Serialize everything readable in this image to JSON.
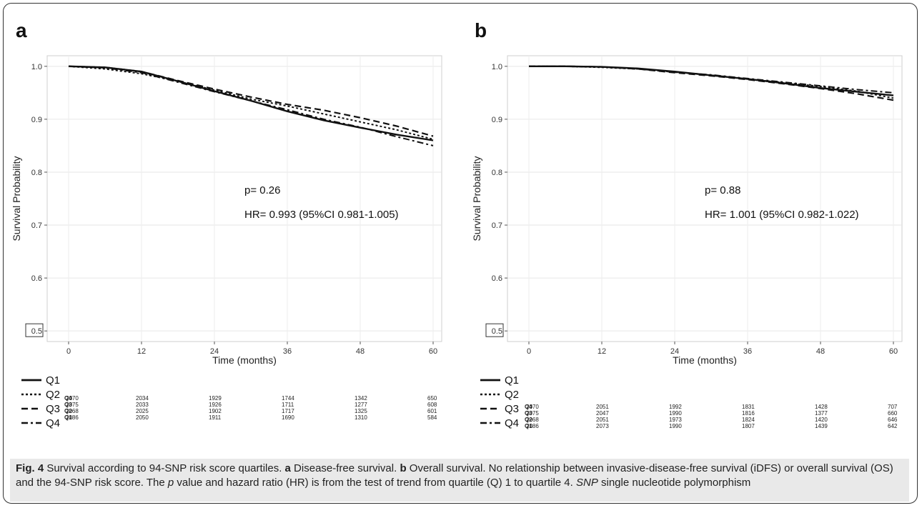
{
  "chart_data": [
    {
      "panel": "a",
      "type": "line",
      "xlabel": "Time (months)",
      "ylabel": "Survival Probability",
      "xlim": [
        0,
        60
      ],
      "ylim": [
        0.48,
        1.02
      ],
      "x_ticks": [
        0,
        12,
        24,
        36,
        48,
        60
      ],
      "y_ticks": [
        0.5,
        0.6,
        0.7,
        0.8,
        0.9,
        1.0
      ],
      "y_tick_labels": [
        "0.5",
        "0.6",
        "0.7",
        "0.8",
        "0.9",
        "1.0"
      ],
      "p_text": "p= 0.26",
      "hr_text": "HR= 0.993 (95%CI 0.981-1.005)",
      "series": [
        {
          "name": "Q1",
          "style": "solid",
          "x": [
            0,
            6,
            12,
            18,
            24,
            30,
            36,
            42,
            48,
            54,
            60
          ],
          "y": [
            1.0,
            0.998,
            0.99,
            0.972,
            0.953,
            0.935,
            0.915,
            0.898,
            0.884,
            0.871,
            0.86
          ]
        },
        {
          "name": "Q2",
          "style": "dotted",
          "x": [
            0,
            6,
            12,
            18,
            24,
            30,
            36,
            42,
            48,
            54,
            60
          ],
          "y": [
            1.0,
            0.995,
            0.986,
            0.972,
            0.955,
            0.938,
            0.925,
            0.91,
            0.895,
            0.88,
            0.862
          ]
        },
        {
          "name": "Q3",
          "style": "dashed",
          "x": [
            0,
            6,
            12,
            18,
            24,
            30,
            36,
            42,
            48,
            54,
            60
          ],
          "y": [
            1.0,
            0.998,
            0.99,
            0.973,
            0.957,
            0.942,
            0.928,
            0.917,
            0.903,
            0.887,
            0.868
          ]
        },
        {
          "name": "Q4",
          "style": "dashdot",
          "x": [
            0,
            6,
            12,
            18,
            24,
            30,
            36,
            42,
            48,
            54,
            60
          ],
          "y": [
            1.0,
            0.997,
            0.988,
            0.97,
            0.952,
            0.935,
            0.918,
            0.9,
            0.885,
            0.867,
            0.85
          ]
        }
      ],
      "risk_table": {
        "x": [
          0,
          12,
          24,
          36,
          48,
          60
        ],
        "rows": [
          {
            "label": "Q4",
            "values": [
              "2070",
              "2034",
              "1929",
              "1744",
              "1342",
              "650"
            ]
          },
          {
            "label": "Q3",
            "values": [
              "2075",
              "2033",
              "1926",
              "1711",
              "1277",
              "608"
            ]
          },
          {
            "label": "Q2",
            "values": [
              "2068",
              "2025",
              "1902",
              "1717",
              "1325",
              "601"
            ]
          },
          {
            "label": "Q1",
            "values": [
              "2086",
              "2050",
              "1911",
              "1690",
              "1310",
              "584"
            ]
          }
        ]
      }
    },
    {
      "panel": "b",
      "type": "line",
      "xlabel": "Time (months)",
      "ylabel": "Survival Probability",
      "xlim": [
        0,
        60
      ],
      "ylim": [
        0.48,
        1.02
      ],
      "x_ticks": [
        0,
        12,
        24,
        36,
        48,
        60
      ],
      "y_ticks": [
        0.5,
        0.6,
        0.7,
        0.8,
        0.9,
        1.0
      ],
      "y_tick_labels": [
        "0.5",
        "0.6",
        "0.7",
        "0.8",
        "0.9",
        "1.0"
      ],
      "p_text": "p= 0.88",
      "hr_text": "HR= 1.001 (95%CI 0.982-1.022)",
      "series": [
        {
          "name": "Q1",
          "style": "solid",
          "x": [
            0,
            6,
            12,
            18,
            24,
            30,
            36,
            42,
            48,
            54,
            60
          ],
          "y": [
            1.0,
            1.0,
            0.999,
            0.996,
            0.99,
            0.983,
            0.976,
            0.968,
            0.959,
            0.952,
            0.945
          ]
        },
        {
          "name": "Q2",
          "style": "dotted",
          "x": [
            0,
            6,
            12,
            18,
            24,
            30,
            36,
            42,
            48,
            54,
            60
          ],
          "y": [
            1.0,
            1.0,
            0.998,
            0.995,
            0.989,
            0.983,
            0.976,
            0.969,
            0.962,
            0.953,
            0.94
          ]
        },
        {
          "name": "Q3",
          "style": "dashed",
          "x": [
            0,
            6,
            12,
            18,
            24,
            30,
            36,
            42,
            48,
            54,
            60
          ],
          "y": [
            1.0,
            1.0,
            0.999,
            0.995,
            0.988,
            0.982,
            0.975,
            0.967,
            0.958,
            0.948,
            0.936
          ]
        },
        {
          "name": "Q4",
          "style": "dashdot",
          "x": [
            0,
            6,
            12,
            18,
            24,
            30,
            36,
            42,
            48,
            54,
            60
          ],
          "y": [
            1.0,
            1.0,
            0.999,
            0.995,
            0.989,
            0.984,
            0.977,
            0.97,
            0.963,
            0.956,
            0.95
          ]
        }
      ],
      "risk_table": {
        "x": [
          0,
          12,
          24,
          36,
          48,
          60
        ],
        "rows": [
          {
            "label": "Q4",
            "values": [
              "2070",
              "2051",
              "1992",
              "1831",
              "1428",
              "707"
            ]
          },
          {
            "label": "Q3",
            "values": [
              "2075",
              "2047",
              "1990",
              "1816",
              "1377",
              "660"
            ]
          },
          {
            "label": "Q2",
            "values": [
              "2068",
              "2051",
              "1973",
              "1824",
              "1420",
              "646"
            ]
          },
          {
            "label": "Q1",
            "values": [
              "2086",
              "2073",
              "1990",
              "1807",
              "1439",
              "642"
            ]
          }
        ]
      }
    }
  ],
  "legend": [
    "Q1",
    "Q2",
    "Q3",
    "Q4"
  ],
  "caption": {
    "fig_label": "Fig. 4",
    "text1": " Survival according to 94-SNP risk score quartiles. ",
    "a_label": "a",
    "text2": " Disease-free survival. ",
    "b_label": "b",
    "text3": " Overall survival. No relationship between invasive-disease-free survival (iDFS) or overall survival (OS) and the 94-SNP risk score. The ",
    "p_italic": "p",
    "text4": " value and hazard ratio (HR) is from the test of trend from quartile (Q) 1 to quartile 4. ",
    "snp_italic": "SNP",
    "text5": " single nucleotide polymorphism"
  }
}
